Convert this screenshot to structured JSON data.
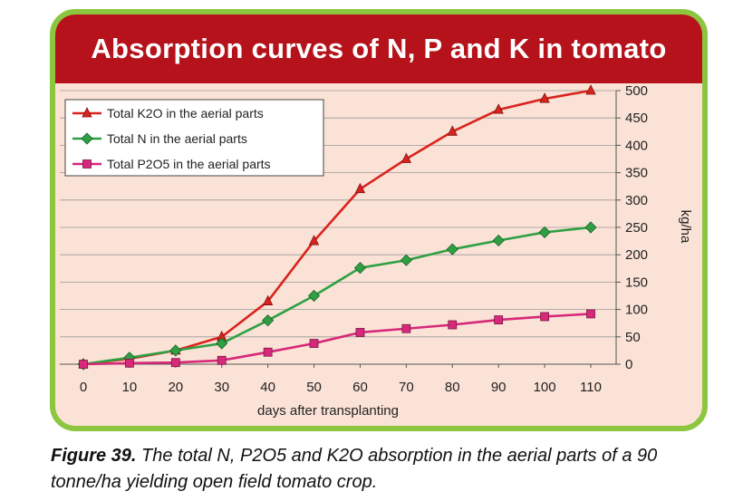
{
  "chart_data": {
    "type": "line",
    "title": "Absorption curves of N, P and K in tomato",
    "xlabel": "days after transplanting",
    "ylabel": "kg/ha",
    "x": [
      0,
      10,
      20,
      30,
      40,
      50,
      60,
      70,
      80,
      90,
      100,
      110
    ],
    "xlim": [
      0,
      110
    ],
    "ylim": [
      0,
      500
    ],
    "xticks": [
      "0",
      "10",
      "20",
      "30",
      "40",
      "50",
      "60",
      "70",
      "80",
      "90",
      "100",
      "110"
    ],
    "yticks": [
      "0",
      "50",
      "100",
      "150",
      "200",
      "250",
      "300",
      "350",
      "400",
      "450",
      "500"
    ],
    "y_axis_side": "right",
    "grid": "horizontal",
    "legend_position": "top-left",
    "series": [
      {
        "name": "Total K2O in the aerial parts",
        "color": "#d9241e",
        "marker": "triangle",
        "values": [
          0,
          10,
          25,
          50,
          115,
          225,
          320,
          375,
          425,
          465,
          485,
          500
        ]
      },
      {
        "name": "Total N in the aerial parts",
        "color": "#2ea043",
        "marker": "diamond",
        "values": [
          0,
          12,
          25,
          38,
          80,
          125,
          176,
          190,
          210,
          226,
          241,
          250
        ]
      },
      {
        "name": "Total P2O5 in the aerial parts",
        "color": "#d6297a",
        "marker": "square",
        "values": [
          0,
          2,
          3,
          7,
          22,
          38,
          58,
          65,
          72,
          81,
          87,
          92
        ]
      }
    ]
  },
  "caption": {
    "label": "Figure 39.",
    "text": "The total N, P2O5 and K2O absorption in the aerial parts of a 90 tonne/ha yielding open field tomato crop."
  },
  "colors": {
    "frame_border": "#8cc63f",
    "plot_background": "#fbe2d6",
    "title_bar": "#b5121b"
  }
}
